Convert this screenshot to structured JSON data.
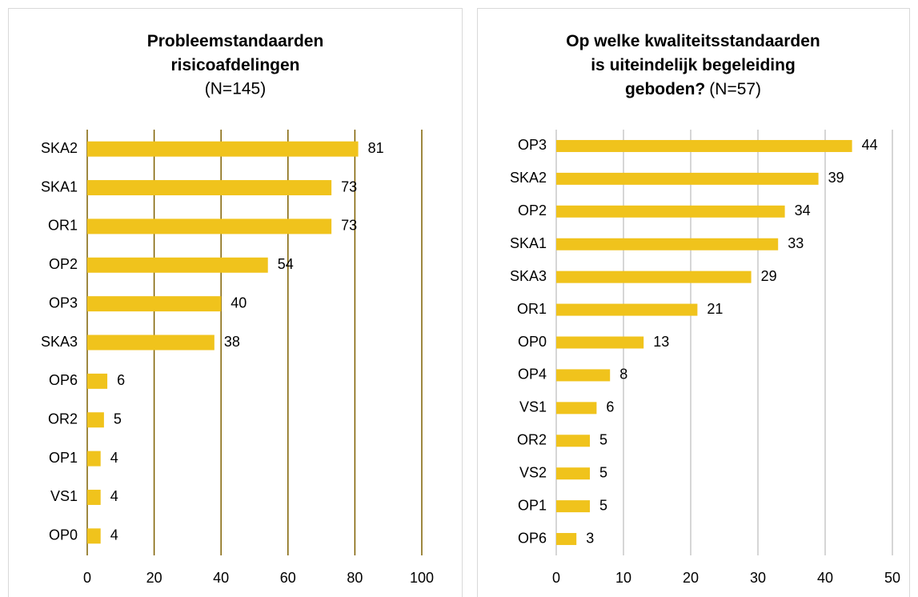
{
  "chart_data": [
    {
      "type": "bar",
      "orientation": "horizontal",
      "title": [
        "Probleemstandaarden",
        "risicoafdelingen"
      ],
      "subtitle": "(N=145)",
      "categories": [
        "SKA2",
        "SKA1",
        "OR1",
        "OP2",
        "OP3",
        "SKA3",
        "OP6",
        "OR2",
        "OP1",
        "VS1",
        "OP0"
      ],
      "values": [
        81,
        73,
        73,
        54,
        40,
        38,
        6,
        5,
        4,
        4,
        4
      ],
      "color": "#f0c31c",
      "grid": true,
      "grid_color": "#7f6000",
      "xlim": [
        0,
        100
      ],
      "xticks": [
        0,
        20,
        40,
        60,
        80,
        100
      ]
    },
    {
      "type": "bar",
      "orientation": "horizontal",
      "title": [
        "Op welke kwaliteitsstandaarden",
        "is uiteindelijk begeleiding",
        "geboden?"
      ],
      "subtitle": "(N=57)",
      "categories": [
        "OP3",
        "SKA2",
        "OP2",
        "SKA1",
        "SKA3",
        "OR1",
        "OP0",
        "OP4",
        "VS1",
        "OR2",
        "VS2",
        "OP1",
        "OP6"
      ],
      "values": [
        44,
        39,
        34,
        33,
        29,
        21,
        13,
        8,
        6,
        5,
        5,
        5,
        3
      ],
      "color": "#f0c31c",
      "grid": true,
      "grid_color": "#c8c8c8",
      "xlim": [
        0,
        50
      ],
      "xticks": [
        0,
        10,
        20,
        30,
        40,
        50
      ]
    }
  ]
}
